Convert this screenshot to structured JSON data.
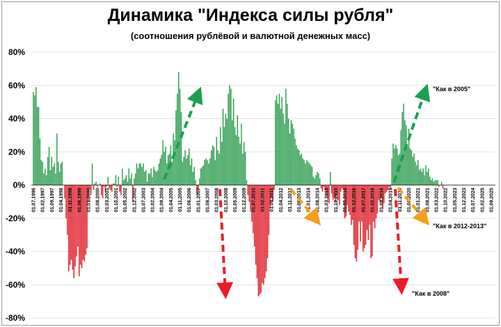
{
  "title": "Динамика \"Индекса силы рубля\"",
  "subtitle": "(соотношения рублёвой и валютной денежных масс)",
  "colors": {
    "positive": "#2e9e4f",
    "negative": "#e0202a",
    "grid": "#d9d9d9",
    "arrow_green": "#1aa050",
    "arrow_red": "#ee1c24",
    "arrow_orange": "#f4a01c"
  },
  "chart_data": {
    "type": "bar",
    "title": "Динамика \"Индекса силы рубля\"",
    "subtitle": "(соотношения рублёвой и валютной денежных масс)",
    "xlabel": "",
    "ylabel": "",
    "ylim": [
      -80,
      80
    ],
    "y_ticks": [
      80,
      60,
      40,
      20,
      0,
      -20,
      -40,
      -60,
      -80
    ],
    "y_tick_labels": [
      "80%",
      "60%",
      "40%",
      "20%",
      "0%",
      "-20%",
      "-40%",
      "-60%",
      "-80%"
    ],
    "grid": true,
    "x_tick_labels": [
      "01.07.1996",
      "01.02.1997",
      "01.09.1997",
      "01.04.1998",
      "01.11.1998",
      "01.06.1999",
      "01.01.2000",
      "01.08.2000",
      "01.03.2001",
      "01.10.2001",
      "01.05.2002",
      "01.12.2002",
      "01.07.2003",
      "01.02.2004",
      "01.09.2004",
      "01.04.2005",
      "01.11.2005",
      "01.06.2006",
      "01.01.2007",
      "01.08.2007",
      "01.03.2008",
      "01.10.2008",
      "01.05.2009",
      "01.12.2009",
      "01.07.2010",
      "01.02.2011",
      "01.09.2011",
      "01.04.2012",
      "01.11.2012",
      "01.06.2013",
      "01.01.2014",
      "01.08.2014",
      "01.03.2015",
      "01.10.2015",
      "01.05.2016",
      "01.12.2016",
      "01.07.2017",
      "01.02.2018",
      "01.09.2018",
      "01.04.2019",
      "01.11.2019",
      "01.06.2020",
      "01.01.2021",
      "01.08.2021",
      "01.03.2022",
      "01.10.2022",
      "01.05.2023",
      "01.12.2023",
      "01.07.2024",
      "01.02.2025",
      "01.09.2025"
    ],
    "months_per_tick": 7,
    "values": [
      56,
      54,
      59,
      47,
      47,
      28,
      15,
      14,
      7,
      10,
      6,
      17,
      23,
      9,
      17,
      11,
      13,
      7,
      31,
      14,
      8,
      13,
      14,
      0,
      -8,
      -20,
      -30,
      -52,
      -48,
      -45,
      -51,
      -56,
      -49,
      -43,
      -37,
      -55,
      -48,
      -50,
      -45,
      -46,
      -42,
      -38,
      -10,
      -2,
      -6,
      13,
      -3,
      1,
      2,
      -1,
      0,
      1,
      -6,
      -8,
      -1,
      -4,
      -1,
      5,
      -2,
      -3,
      -4,
      1,
      1,
      6,
      -1,
      5,
      -4,
      -6,
      10,
      3,
      4,
      6,
      2,
      10,
      4,
      7,
      -10,
      4,
      7,
      13,
      10,
      13,
      13,
      11,
      13,
      8,
      9,
      2,
      7,
      7,
      10,
      5,
      11,
      9,
      8,
      9,
      13,
      16,
      18,
      27,
      20,
      23,
      13,
      18,
      19,
      24,
      14,
      31,
      27,
      45,
      55,
      68,
      58,
      44,
      14,
      17,
      21,
      16,
      18,
      22,
      12,
      16,
      8,
      11,
      3,
      -6,
      -3,
      4,
      10,
      11,
      12,
      15,
      16,
      15,
      13,
      16,
      21,
      24,
      23,
      15,
      29,
      21,
      19,
      35,
      26,
      46,
      35,
      43,
      40,
      55,
      60,
      58,
      39,
      52,
      35,
      30,
      42,
      29,
      25,
      37,
      19,
      26,
      20,
      3,
      -6,
      -10,
      -16,
      -22,
      -29,
      -37,
      -48,
      -56,
      -67,
      -66,
      -65,
      -59,
      -60,
      -56,
      -52,
      -44,
      -30,
      -14,
      -8,
      -10,
      -3,
      51,
      54,
      49,
      55,
      46,
      53,
      43,
      37,
      58,
      49,
      40,
      31,
      39,
      37,
      34,
      28,
      24,
      22,
      21,
      18,
      19,
      16,
      15,
      13,
      15,
      14,
      13,
      12,
      11,
      5,
      4,
      6,
      8,
      7,
      4,
      -2,
      -4,
      -1,
      -3,
      -6,
      -8,
      -11,
      8,
      -5,
      -9,
      -7,
      -10,
      -6,
      -9,
      -12,
      -4,
      -2,
      -3,
      -20,
      -19,
      -12,
      -16,
      -18,
      -24,
      -21,
      -36,
      -44,
      -46,
      -39,
      -22,
      -34,
      -22,
      -40,
      -38,
      -36,
      -27,
      -33,
      -24,
      -44,
      -43,
      -22,
      -26,
      -20,
      -17,
      -9,
      -10,
      -8,
      -14,
      -11,
      -5,
      -4,
      -3,
      -1,
      -2,
      16,
      25,
      22,
      24,
      22,
      18,
      19,
      33,
      44,
      49,
      39,
      36,
      23,
      34,
      22,
      21,
      17,
      19,
      14,
      12,
      15,
      9,
      10,
      8,
      10,
      6,
      12,
      8,
      10,
      5,
      3,
      4,
      2,
      3,
      3,
      3,
      -1,
      0,
      2,
      -2
    ]
  },
  "annotations": [
    {
      "label": "\"Как в 2005\""
    },
    {
      "label": "\"Как в 2012-2013\""
    },
    {
      "label": "\"Как в 2008\""
    }
  ]
}
